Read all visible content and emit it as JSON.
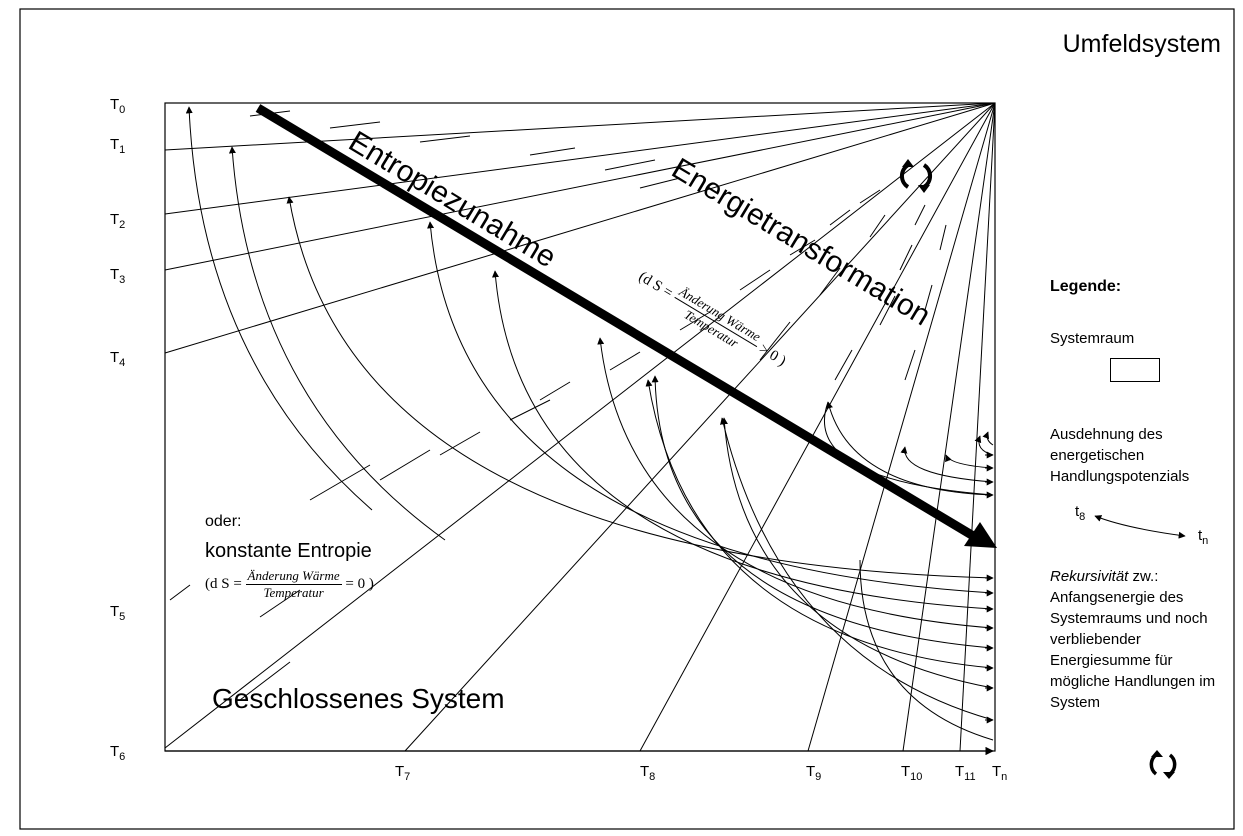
{
  "title": "Umfeldsystem",
  "diagram": {
    "arrow_label_1": "Entropiezunahme",
    "arrow_label_2": "Energietransformation",
    "formula_increase": {
      "prefix": "(d S =",
      "numerator": "Änderung Wärme",
      "denominator": "Temperatur",
      "suffix": "> 0 )"
    },
    "alternative_label": "oder:",
    "constant_label": "konstante Entropie",
    "formula_constant": {
      "prefix": "(d S =",
      "numerator": "Änderung Wärme",
      "denominator": "Temperatur",
      "suffix": "= 0 )"
    },
    "system_label": "Geschlossenes System",
    "y_ticks": [
      {
        "base": "T",
        "sub": "0"
      },
      {
        "base": "T",
        "sub": "1"
      },
      {
        "base": "T",
        "sub": "2"
      },
      {
        "base": "T",
        "sub": "3"
      },
      {
        "base": "T",
        "sub": "4"
      },
      {
        "base": "T",
        "sub": "5"
      },
      {
        "base": "T",
        "sub": "6"
      }
    ],
    "x_ticks": [
      {
        "base": "T",
        "sub": "7"
      },
      {
        "base": "T",
        "sub": "8"
      },
      {
        "base": "T",
        "sub": "9"
      },
      {
        "base": "T",
        "sub": "10"
      },
      {
        "base": "T",
        "sub": "11"
      },
      {
        "base": "T",
        "sub": "n"
      }
    ],
    "recursion_icon": "circular-arrows-icon"
  },
  "legend": {
    "title": "Legende:",
    "systemraum": "Systemraum",
    "ausdehnung": "Ausdehnung des energetischen Handlungspotenzials",
    "t_start": "t",
    "t_start_sub": "8",
    "t_end": "t",
    "t_end_sub": "n",
    "rekursivitaet_word": "Rekursivität",
    "rekursivitaet_rest": " zw.: Anfangsenergie des Systemraums und noch verbliebender Energiesumme für mögliche Handlungen im System",
    "icon": "circular-arrows-icon"
  }
}
